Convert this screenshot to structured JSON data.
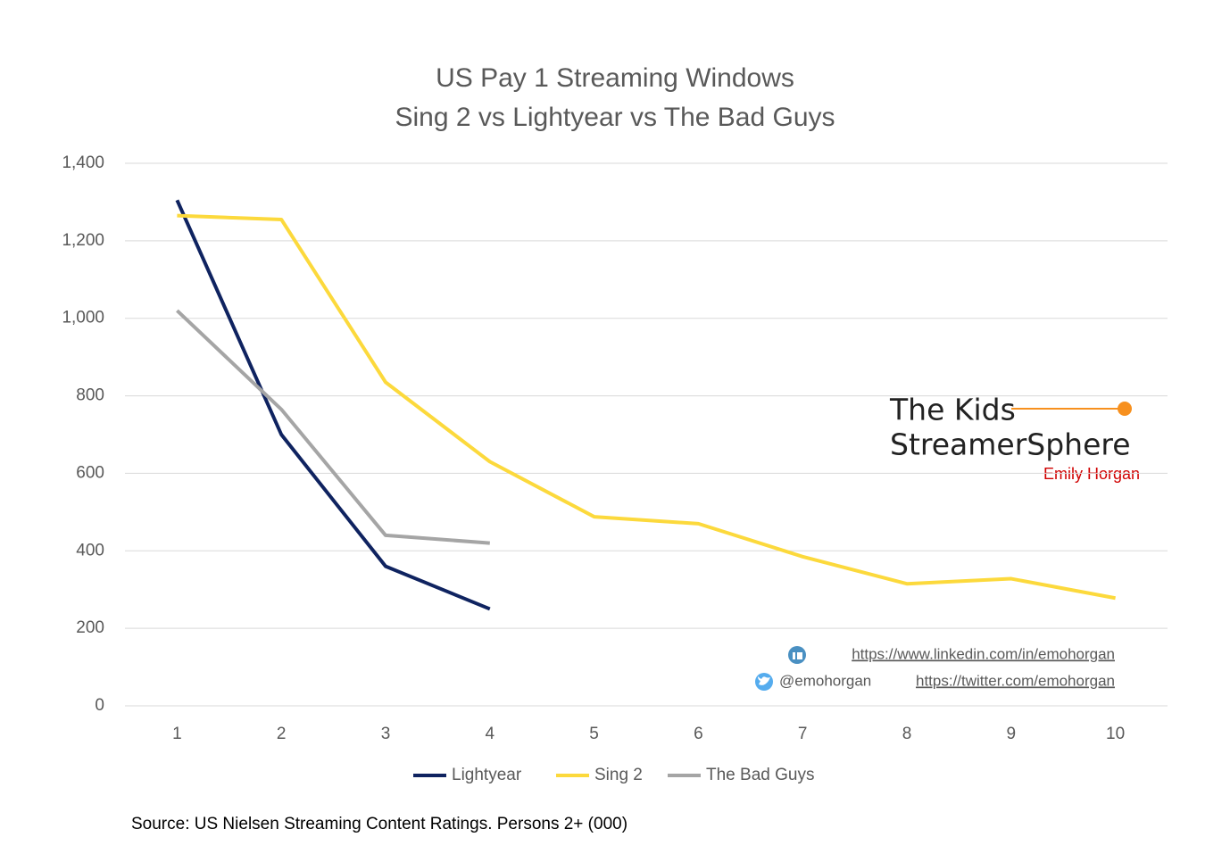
{
  "chart_data": {
    "type": "line",
    "title": [
      "US Pay 1 Streaming Windows",
      "Sing 2 vs Lightyear vs The Bad Guys"
    ],
    "categories": [
      1,
      2,
      3,
      4,
      5,
      6,
      7,
      8,
      9,
      10
    ],
    "series": [
      {
        "name": "Lightyear",
        "color": "#0f2360",
        "values": [
          1305,
          700,
          360,
          250,
          null,
          null,
          null,
          null,
          null,
          null
        ]
      },
      {
        "name": "Sing 2",
        "color": "#fcd93c",
        "values": [
          1265,
          1255,
          835,
          630,
          488,
          470,
          385,
          315,
          328,
          278
        ]
      },
      {
        "name": "The Bad Guys",
        "color": "#a5a5a5",
        "values": [
          1020,
          765,
          440,
          420,
          null,
          null,
          null,
          null,
          null,
          null
        ]
      }
    ],
    "ylim": [
      0,
      1400
    ],
    "yticks": [
      0,
      200,
      400,
      600,
      800,
      {
        "value": 1000,
        "label": "1,000"
      },
      {
        "value": 1200,
        "label": "1,200"
      },
      {
        "value": 1400,
        "label": "1,400"
      }
    ],
    "grid": true,
    "legend": "bottom",
    "source": "Source:  US Nielsen Streaming Content Ratings.  Persons 2+ (000)",
    "logo": {
      "line1": "The Kids",
      "line2": "StreamerSphere",
      "author": "Emily Horgan"
    },
    "links": {
      "linkedin": "https://www.linkedin.com/in/emohorgan",
      "handle": "@emohorgan",
      "twitter": "https://twitter.com/emohorgan"
    }
  }
}
